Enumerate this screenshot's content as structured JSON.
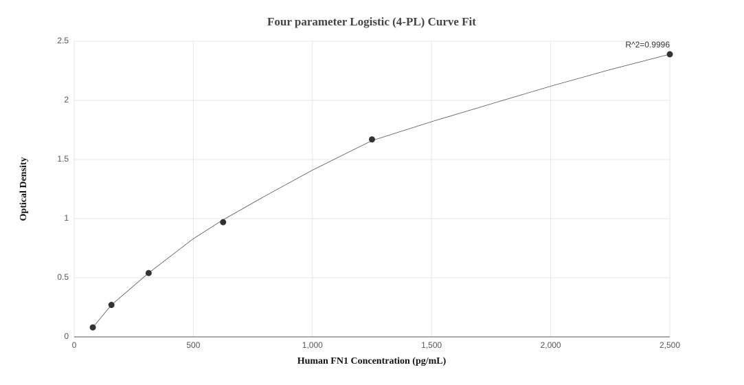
{
  "chart_data": {
    "type": "scatter",
    "title": "Four parameter Logistic (4-PL) Curve Fit",
    "x_label": "Human FN1 Concentration (pg/mL)",
    "y_label": "Optical Density",
    "annotation": "R^2=0.9996",
    "xlim": [
      0,
      2500
    ],
    "ylim": [
      0,
      2.5
    ],
    "xticks": [
      0,
      500,
      {
        "value": 1000,
        "label": "1,000"
      },
      {
        "value": 1500,
        "label": "1,500"
      },
      {
        "value": 2000,
        "label": "2,000"
      },
      {
        "value": 2500,
        "label": "2,500"
      }
    ],
    "yticks": [
      0,
      0.5,
      1,
      1.5,
      2,
      2.5
    ],
    "grid": true,
    "series": [
      {
        "color": "#333333",
        "x": [
          78.125,
          156.25,
          312.5,
          625,
          1250,
          2500
        ],
        "values": [
          0.08,
          0.27,
          0.54,
          0.97,
          1.67,
          2.39
        ]
      },
      {
        "color": "#555555",
        "x": [
          78.125,
          156.25,
          312.5,
          500,
          625,
          800,
          1000,
          1250,
          1500,
          1750,
          2000,
          2250,
          2500
        ],
        "values": [
          0.08,
          0.27,
          0.54,
          0.83,
          0.99,
          1.19,
          1.41,
          1.66,
          1.82,
          1.97,
          2.12,
          2.26,
          2.39
        ]
      }
    ]
  }
}
